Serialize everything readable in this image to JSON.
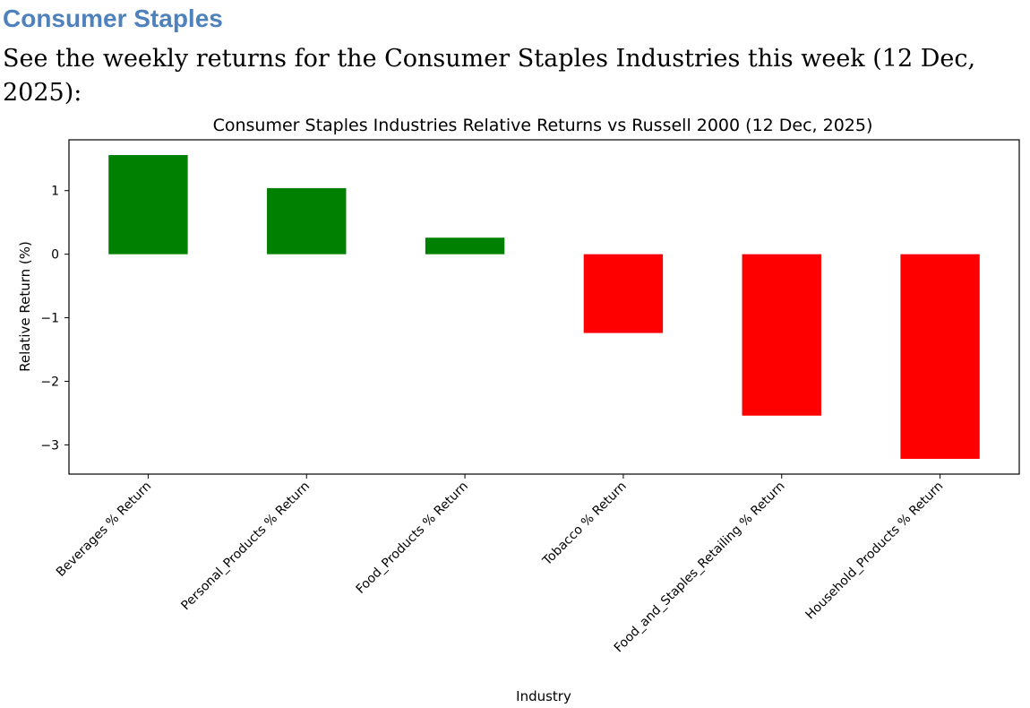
{
  "page": {
    "heading": "Consumer Staples",
    "subheading": "See the weekly returns for the Consumer Staples Industries this week (12 Dec, 2025):",
    "heading_color": "#4f81bd"
  },
  "chart_data": {
    "type": "bar",
    "title": "Consumer Staples Industries Relative Returns vs Russell 2000 (12 Dec, 2025)",
    "xlabel": "Industry",
    "ylabel": "Relative Return (%)",
    "categories": [
      "Beverages % Return",
      "Personal_Products % Return",
      "Food_Products % Return",
      "Tobacco % Return",
      "Food_and_Staples_Retailing % Return",
      "Household_Products % Return"
    ],
    "values": [
      1.56,
      1.04,
      0.26,
      -1.24,
      -2.54,
      -3.22
    ],
    "ylim": [
      -3.46,
      1.8
    ],
    "yticks": [
      1,
      0,
      -1,
      -2,
      -3
    ],
    "ytick_labels": [
      "1",
      "0",
      "−1",
      "−2",
      "−3"
    ],
    "positive_color": "#008000",
    "negative_color": "#ff0000",
    "grid": false,
    "legend": false
  }
}
